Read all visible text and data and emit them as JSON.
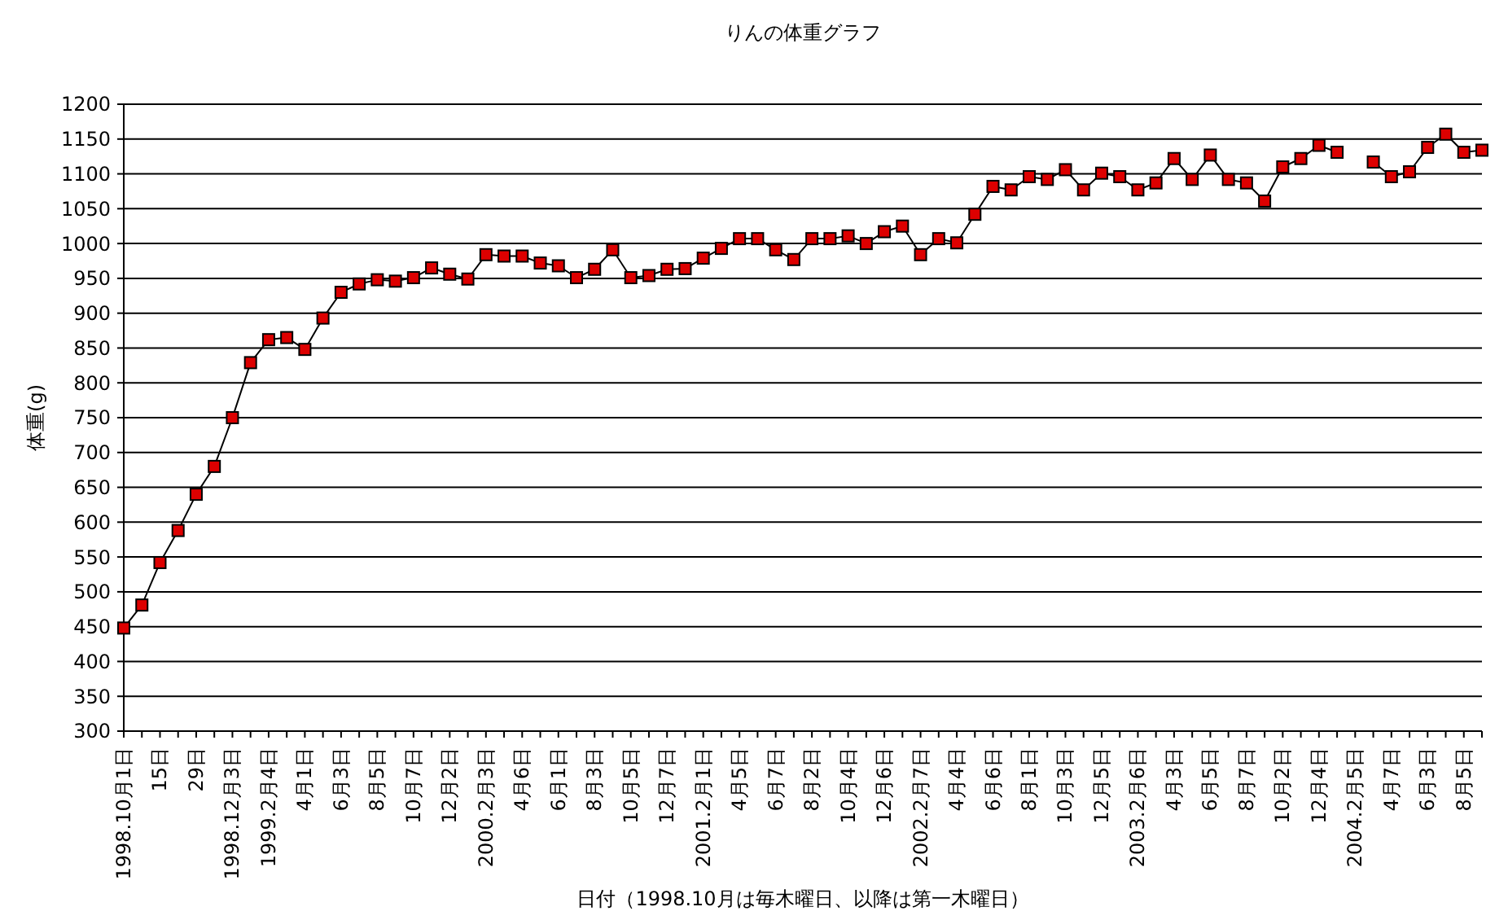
{
  "chart_data": {
    "type": "line",
    "title": "りんの体重グラフ",
    "xlabel": "日付（1998.10月は毎木曜日、以降は第一木曜日）",
    "ylabel": "体重(g)",
    "categories": [
      "1998.10月1日",
      null,
      "15日",
      null,
      "29日",
      null,
      "1998.12月3日",
      null,
      "1999.2月4日",
      null,
      "4月1日",
      null,
      "6月3日",
      null,
      "8月5日",
      null,
      "10月7日",
      null,
      "12月2日",
      null,
      "2000.2月3日",
      null,
      "4月6日",
      null,
      "6月1日",
      null,
      "8月3日",
      null,
      "10月5日",
      null,
      "12月7日",
      null,
      "2001.2月1日",
      null,
      "4月5日",
      null,
      "6月7日",
      null,
      "8月2日",
      null,
      "10月4日",
      null,
      "12月6日",
      null,
      "2002.2月7日",
      null,
      "4月4日",
      null,
      "6月6日",
      null,
      "8月1日",
      null,
      "10月3日",
      null,
      "12月5日",
      null,
      "2003.2月6日",
      null,
      "4月3日",
      null,
      "6月5日",
      null,
      "8月7日",
      null,
      "10月2日",
      null,
      "12月4日",
      null,
      "2004.2月5日",
      null,
      "4月7日",
      null,
      "6月3日",
      null,
      "8月5日",
      null
    ],
    "series": [
      {
        "color": "#dd0000",
        "values": [
          448,
          481,
          542,
          588,
          640,
          680,
          750,
          829,
          862,
          865,
          848,
          893,
          930,
          942,
          948,
          946,
          951,
          965,
          956,
          949,
          984,
          982,
          982,
          972,
          968,
          951,
          963,
          991,
          951,
          954,
          963,
          964,
          979,
          993,
          1007,
          1007,
          991,
          977,
          1007,
          1007,
          1011,
          1000,
          1017,
          1025,
          984,
          1007,
          1001,
          1042,
          1082,
          1077,
          1096,
          1092,
          1106,
          1077,
          1101,
          1096,
          1077,
          1087,
          1122,
          1092,
          1127,
          1092,
          1087,
          1061,
          1110,
          1122,
          1141,
          1131,
          null,
          1117,
          1096,
          1103,
          1138,
          1157,
          1131,
          1134
        ]
      }
    ],
    "ylim": [
      300,
      1200
    ],
    "yticks": [
      300,
      350,
      400,
      450,
      500,
      550,
      600,
      650,
      700,
      750,
      800,
      850,
      900,
      950,
      1000,
      1050,
      1100,
      1150,
      1200
    ],
    "grid": "y",
    "marker": "square",
    "line_style": "solid"
  }
}
